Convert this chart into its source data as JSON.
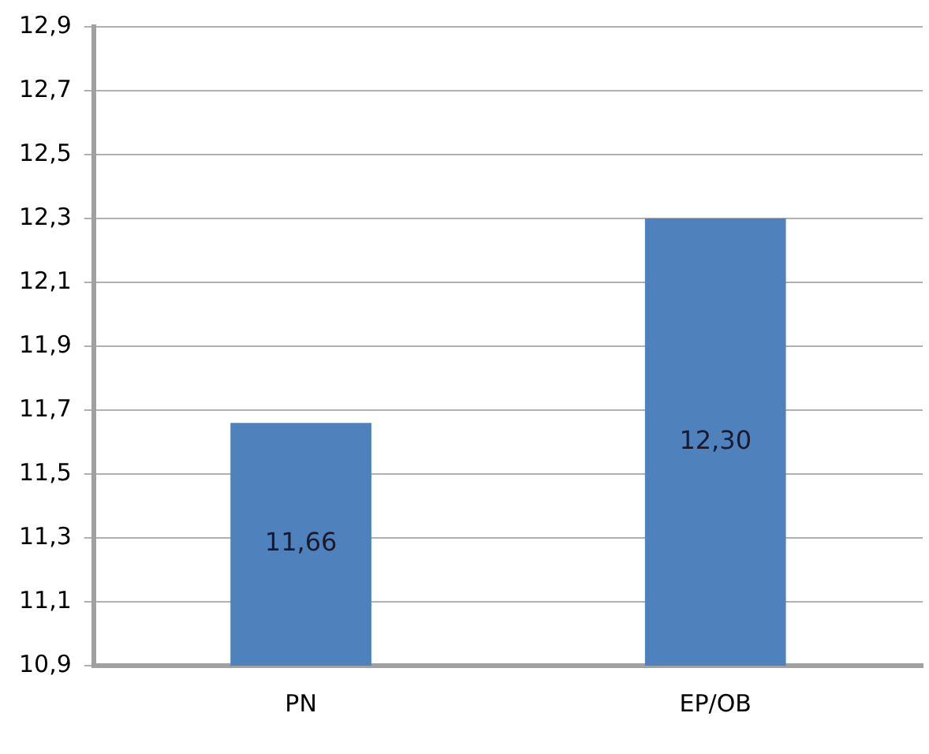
{
  "chart_data": {
    "type": "bar",
    "categories": [
      "PN",
      "EP/OB"
    ],
    "values": [
      11.66,
      12.3
    ],
    "value_labels": [
      "11,66",
      "12,30"
    ],
    "color": "#4f81bd",
    "ylim": [
      10.9,
      12.9
    ],
    "yticks": [
      {
        "value": 10.9,
        "label": "10,9"
      },
      {
        "value": 11.1,
        "label": "11,1"
      },
      {
        "value": 11.3,
        "label": "11,3"
      },
      {
        "value": 11.5,
        "label": "11,5"
      },
      {
        "value": 11.7,
        "label": "11,7"
      },
      {
        "value": 11.9,
        "label": "11,9"
      },
      {
        "value": 12.1,
        "label": "12,1"
      },
      {
        "value": 12.3,
        "label": "12,3"
      },
      {
        "value": 12.5,
        "label": "12,5"
      },
      {
        "value": 12.7,
        "label": "12,7"
      },
      {
        "value": 12.9,
        "label": "12,9"
      }
    ],
    "grid": "y",
    "legend": false
  }
}
